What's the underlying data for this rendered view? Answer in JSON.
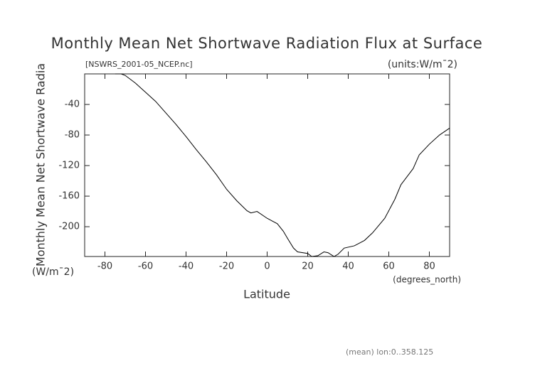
{
  "chart_data": {
    "type": "line",
    "title": "Monthly Mean Net Shortwave Radiation Flux at Surface",
    "subtitle": "[NSWRS_2001-05_NCEP.nc]",
    "units_label": "(units:W/m¯2)",
    "ylabel": "Monthly Mean Net Shortwave Radia",
    "yunits": "(W/m¯2)",
    "xlabel": "Latitude",
    "xunits": "(degrees_north)",
    "footnote": "(mean) lon:0..358.125",
    "x": [
      -75,
      -72,
      -70,
      -65,
      -60,
      -55,
      -50,
      -45,
      -40,
      -35,
      -30,
      -25,
      -20,
      -15,
      -10,
      -8,
      -5,
      0,
      5,
      8,
      10,
      13,
      15,
      20,
      22,
      25,
      28,
      30,
      33,
      35,
      38,
      43,
      48,
      52,
      58,
      63,
      66,
      72,
      75,
      80,
      85,
      90
    ],
    "values": [
      0,
      0,
      -2,
      -12,
      -24,
      -36,
      -51,
      -66,
      -82,
      -99,
      -115,
      -132,
      -151,
      -166,
      -179,
      -182,
      -180,
      -189,
      -196,
      -206,
      -215,
      -228,
      -233,
      -235,
      -239,
      -238,
      -233,
      -234,
      -239,
      -236,
      -228,
      -225,
      -218,
      -208,
      -189,
      -164,
      -145,
      -124,
      -106,
      -92,
      -80,
      -71
    ],
    "color": "#000000",
    "xlim": [
      -90,
      90
    ],
    "xticks": [
      -80,
      -60,
      -40,
      -20,
      0,
      20,
      40,
      60,
      80
    ],
    "ylim": [
      -239,
      0
    ],
    "yticks": [
      -200,
      -160,
      -120,
      -80,
      -40
    ]
  }
}
